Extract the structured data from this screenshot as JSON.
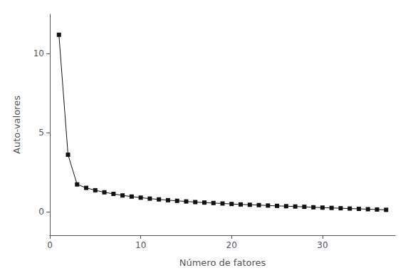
{
  "chart_data": {
    "type": "line",
    "xlabel": "Número de fatores",
    "ylabel": "Auto-valores",
    "x": [
      1,
      2,
      3,
      4,
      5,
      6,
      7,
      8,
      9,
      10,
      11,
      12,
      13,
      14,
      15,
      16,
      17,
      18,
      19,
      20,
      21,
      22,
      23,
      24,
      25,
      26,
      27,
      28,
      29,
      30,
      31,
      32,
      33,
      34,
      35,
      36,
      37
    ],
    "values": [
      11.2,
      3.6,
      1.72,
      1.5,
      1.35,
      1.22,
      1.12,
      1.02,
      0.95,
      0.88,
      0.82,
      0.77,
      0.72,
      0.68,
      0.64,
      0.6,
      0.57,
      0.54,
      0.51,
      0.48,
      0.45,
      0.43,
      0.41,
      0.38,
      0.36,
      0.34,
      0.32,
      0.3,
      0.27,
      0.25,
      0.23,
      0.21,
      0.19,
      0.17,
      0.15,
      0.13,
      0.11
    ],
    "xlim": [
      0,
      38
    ],
    "ylim": [
      -1.5,
      12.5
    ],
    "xticks": [
      0,
      10,
      20,
      30
    ],
    "yticks": [
      0,
      5,
      10
    ],
    "grid": false,
    "color": "#111111",
    "marker": "square"
  }
}
